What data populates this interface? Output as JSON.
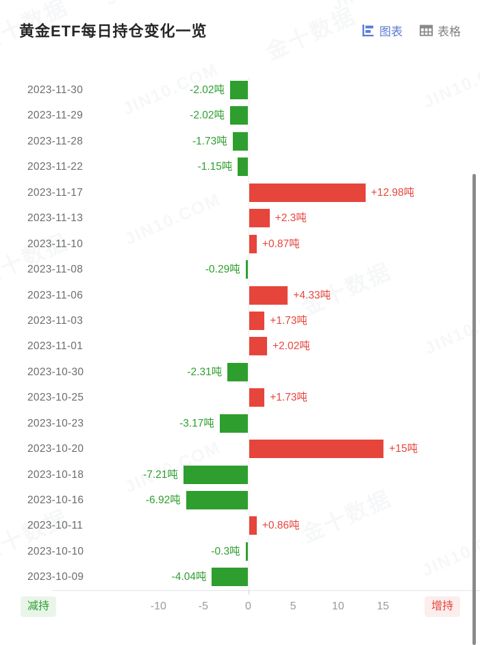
{
  "header": {
    "title": "黄金ETF每日持仓变化一览",
    "tabs": {
      "chart": "图表",
      "table": "表格"
    }
  },
  "chart_data": {
    "type": "bar",
    "orientation": "horizontal",
    "title": "黄金ETF每日持仓变化一览",
    "unit": "吨",
    "xlim": [
      -10,
      15
    ],
    "grid": "zero-line-only",
    "colors": {
      "positive": "#e6453c",
      "negative": "#2e9e2e"
    },
    "legend": {
      "negative": "减持",
      "positive": "增持"
    },
    "axis_ticks": [
      {
        "value": -10,
        "label": "-10"
      },
      {
        "value": -5,
        "label": "-5"
      },
      {
        "value": 0,
        "label": "0"
      },
      {
        "value": 5,
        "label": "5"
      },
      {
        "value": 10,
        "label": "10"
      },
      {
        "value": 15,
        "label": "15"
      }
    ],
    "rows": [
      {
        "date": "2023-11-30",
        "value": -2.02,
        "label": "-2.02吨"
      },
      {
        "date": "2023-11-29",
        "value": -2.02,
        "label": "-2.02吨"
      },
      {
        "date": "2023-11-28",
        "value": -1.73,
        "label": "-1.73吨"
      },
      {
        "date": "2023-11-22",
        "value": -1.15,
        "label": "-1.15吨"
      },
      {
        "date": "2023-11-17",
        "value": 12.98,
        "label": "+12.98吨"
      },
      {
        "date": "2023-11-13",
        "value": 2.3,
        "label": "+2.3吨"
      },
      {
        "date": "2023-11-10",
        "value": 0.87,
        "label": "+0.87吨"
      },
      {
        "date": "2023-11-08",
        "value": -0.29,
        "label": "-0.29吨"
      },
      {
        "date": "2023-11-06",
        "value": 4.33,
        "label": "+4.33吨"
      },
      {
        "date": "2023-11-03",
        "value": 1.73,
        "label": "+1.73吨"
      },
      {
        "date": "2023-11-01",
        "value": 2.02,
        "label": "+2.02吨"
      },
      {
        "date": "2023-10-30",
        "value": -2.31,
        "label": "-2.31吨"
      },
      {
        "date": "2023-10-25",
        "value": 1.73,
        "label": "+1.73吨"
      },
      {
        "date": "2023-10-23",
        "value": -3.17,
        "label": "-3.17吨"
      },
      {
        "date": "2023-10-20",
        "value": 15,
        "label": "+15吨"
      },
      {
        "date": "2023-10-18",
        "value": -7.21,
        "label": "-7.21吨"
      },
      {
        "date": "2023-10-16",
        "value": -6.92,
        "label": "-6.92吨"
      },
      {
        "date": "2023-10-11",
        "value": 0.86,
        "label": "+0.86吨"
      },
      {
        "date": "2023-10-10",
        "value": -0.3,
        "label": "-0.3吨"
      },
      {
        "date": "2023-10-09",
        "value": -4.04,
        "label": "-4.04吨"
      }
    ]
  },
  "watermark": {
    "brand_cn": "金十数据",
    "brand_en": "JIN10.COM"
  }
}
